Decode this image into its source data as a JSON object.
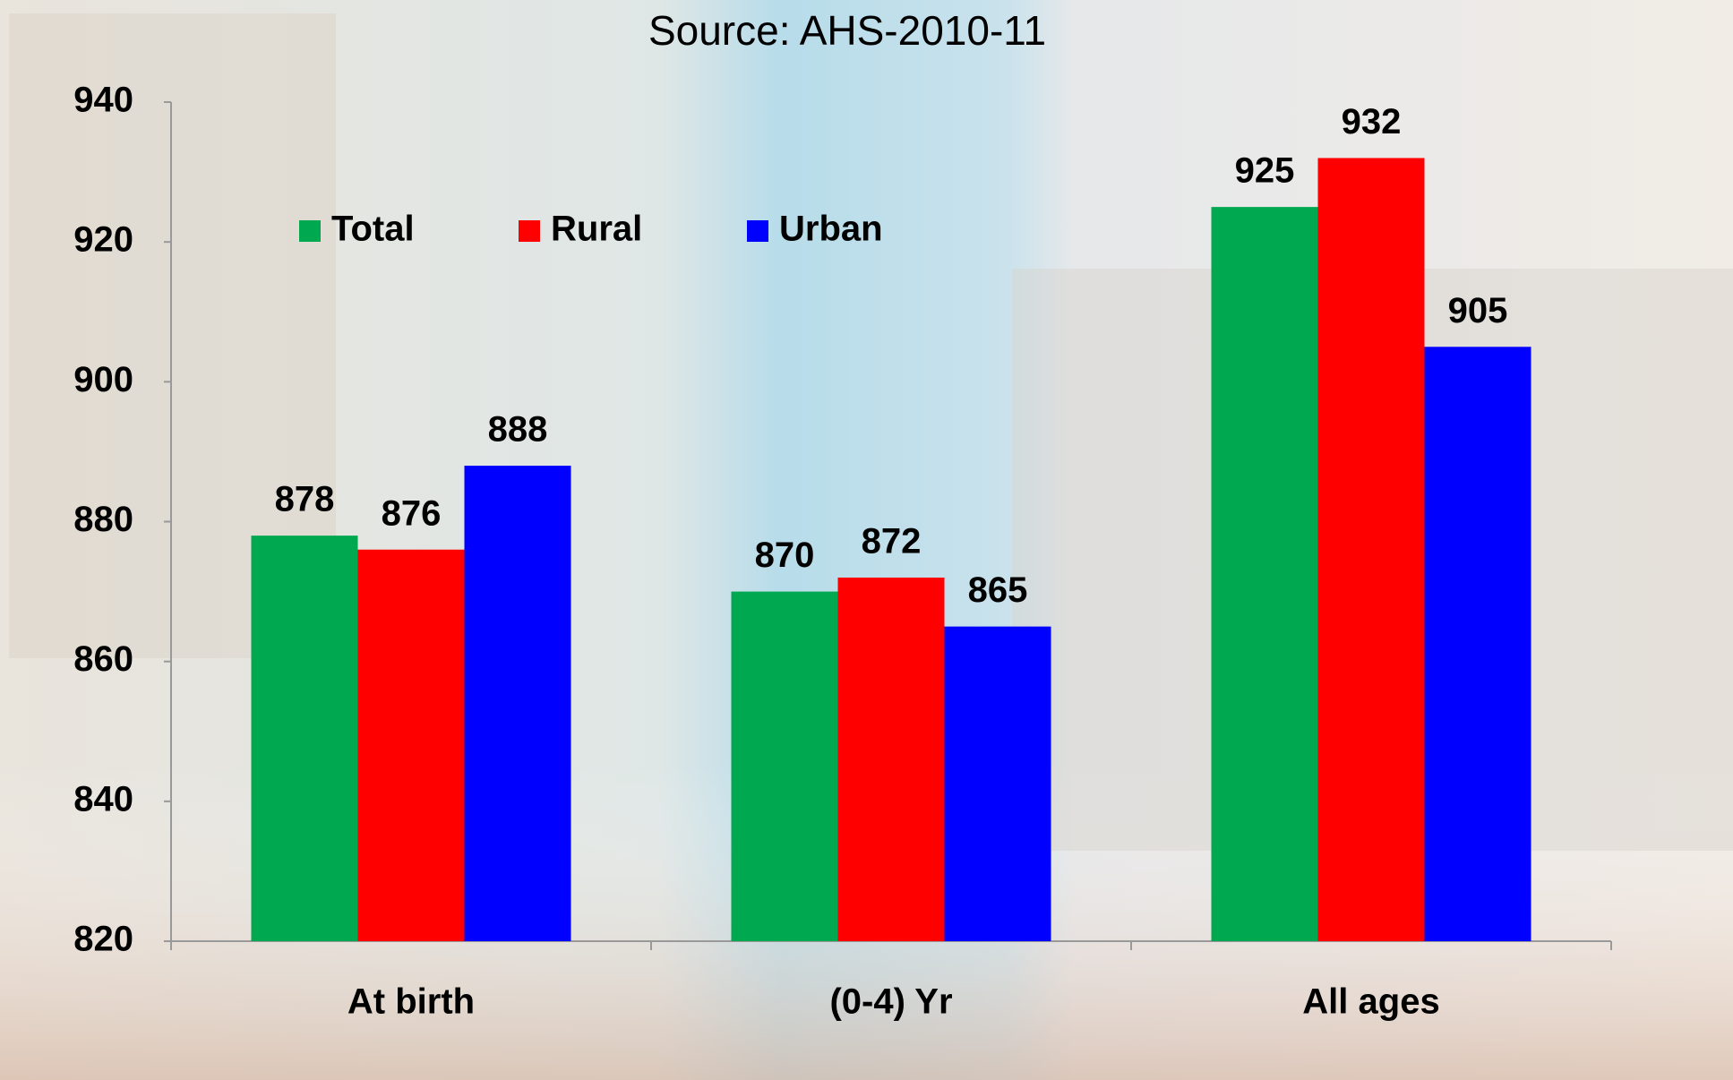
{
  "chart_data": {
    "type": "bar",
    "subtitle": "Source: AHS-2010-11",
    "categories": [
      "At birth",
      "(0-4) Yr",
      "All ages"
    ],
    "series": [
      {
        "name": "Total",
        "color": "#00a84f",
        "values": [
          878,
          870,
          925
        ]
      },
      {
        "name": "Rural",
        "color": "#ff0000",
        "values": [
          876,
          872,
          932
        ]
      },
      {
        "name": "Urban",
        "color": "#0000ff",
        "values": [
          888,
          865,
          905
        ]
      }
    ],
    "ylim": [
      820,
      940
    ],
    "yticks": [
      820,
      840,
      860,
      880,
      900,
      920,
      940
    ],
    "grid": false,
    "legend": "top-left"
  }
}
